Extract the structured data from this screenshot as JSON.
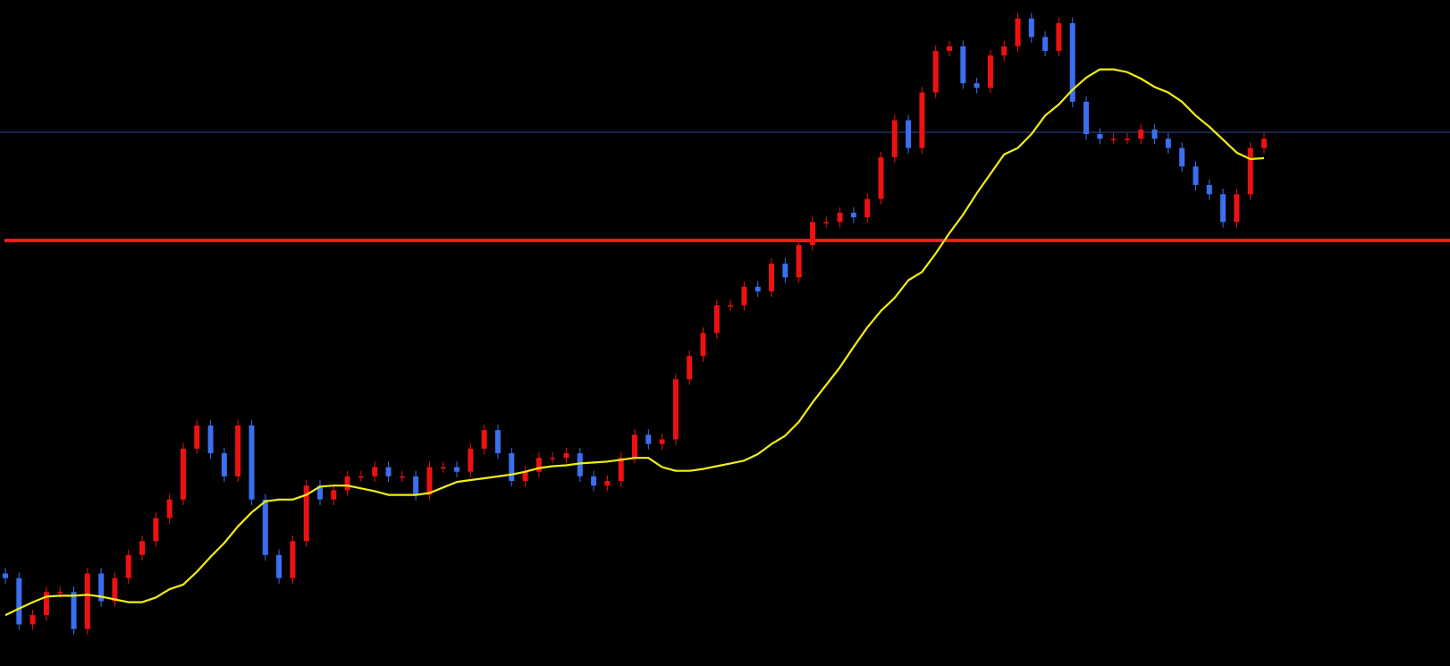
{
  "chart_data": {
    "type": "candlestick",
    "ylim": [
      0,
      720
    ],
    "up_color": "#ee1111",
    "down_color": "#3a6ff0",
    "background": "#000000",
    "open": [
      100,
      95,
      45,
      55,
      80,
      80,
      40,
      100,
      70,
      95,
      120,
      135,
      160,
      180,
      235,
      260,
      230,
      205,
      260,
      180,
      120,
      95,
      135,
      195,
      180,
      190,
      205,
      205,
      215,
      205,
      205,
      185,
      215,
      215,
      210,
      235,
      255,
      230,
      200,
      210,
      225,
      225,
      230,
      205,
      195,
      200,
      225,
      250,
      240,
      245,
      310,
      335,
      360,
      390,
      390,
      410,
      405,
      435,
      420,
      455,
      480,
      480,
      490,
      485,
      505,
      550,
      590,
      560,
      620,
      665,
      670,
      630,
      625,
      660,
      670,
      700,
      680,
      665,
      695,
      610,
      575,
      570,
      570,
      570,
      580,
      570,
      560,
      540,
      520,
      510,
      480,
      510,
      560
    ],
    "high": [
      106,
      101,
      61,
      86,
      86,
      86,
      106,
      106,
      101,
      126,
      141,
      166,
      186,
      241,
      266,
      266,
      236,
      266,
      266,
      186,
      126,
      141,
      201,
      201,
      196,
      211,
      211,
      221,
      221,
      211,
      211,
      221,
      221,
      221,
      241,
      261,
      261,
      236,
      216,
      231,
      231,
      236,
      236,
      211,
      206,
      231,
      256,
      256,
      251,
      316,
      341,
      366,
      396,
      396,
      416,
      416,
      441,
      441,
      461,
      486,
      486,
      496,
      496,
      511,
      556,
      596,
      596,
      626,
      671,
      676,
      676,
      636,
      666,
      676,
      706,
      706,
      686,
      701,
      701,
      616,
      581,
      576,
      576,
      586,
      586,
      576,
      566,
      546,
      526,
      516,
      516,
      566,
      576
    ],
    "low": [
      89,
      39,
      39,
      49,
      74,
      34,
      34,
      64,
      64,
      89,
      114,
      129,
      154,
      174,
      229,
      224,
      199,
      199,
      174,
      114,
      89,
      89,
      129,
      174,
      174,
      184,
      199,
      199,
      199,
      199,
      179,
      179,
      209,
      204,
      204,
      229,
      224,
      194,
      194,
      204,
      219,
      219,
      199,
      189,
      189,
      194,
      219,
      234,
      234,
      239,
      304,
      329,
      354,
      384,
      384,
      399,
      399,
      414,
      414,
      449,
      474,
      474,
      479,
      479,
      499,
      544,
      554,
      554,
      614,
      659,
      624,
      619,
      619,
      654,
      664,
      674,
      659,
      659,
      604,
      569,
      564,
      564,
      564,
      564,
      564,
      554,
      534,
      514,
      504,
      474,
      474,
      504,
      554
    ],
    "close": [
      95,
      45,
      55,
      80,
      80,
      40,
      100,
      70,
      95,
      120,
      135,
      160,
      180,
      235,
      260,
      230,
      205,
      260,
      180,
      120,
      95,
      135,
      195,
      180,
      190,
      205,
      205,
      215,
      205,
      205,
      185,
      215,
      215,
      210,
      235,
      255,
      230,
      200,
      210,
      225,
      225,
      230,
      205,
      195,
      200,
      225,
      250,
      240,
      245,
      310,
      335,
      360,
      390,
      390,
      410,
      405,
      435,
      420,
      455,
      480,
      480,
      490,
      485,
      505,
      550,
      590,
      560,
      620,
      665,
      670,
      630,
      625,
      660,
      670,
      700,
      680,
      665,
      695,
      610,
      575,
      570,
      570,
      570,
      580,
      570,
      560,
      540,
      520,
      510,
      480,
      510,
      560,
      570
    ],
    "ma": {
      "color": "#f2ee10",
      "values": [
        55,
        62,
        69,
        75,
        76,
        76,
        77,
        75,
        72,
        69,
        69,
        74,
        83,
        88,
        102,
        118,
        133,
        151,
        166,
        178,
        180,
        180,
        185,
        194,
        195,
        195,
        192,
        189,
        185,
        185,
        185,
        187,
        193,
        199,
        201,
        203,
        205,
        207,
        210,
        214,
        216,
        217,
        219,
        220,
        221,
        223,
        225,
        225,
        215,
        211,
        211,
        213,
        216,
        219,
        222,
        229,
        240,
        249,
        264,
        285,
        304,
        323,
        345,
        366,
        384,
        398,
        417,
        426,
        446,
        468,
        488,
        511,
        532,
        553,
        560,
        575,
        595,
        607,
        623,
        636,
        645,
        645,
        642,
        635,
        626,
        620,
        610,
        595,
        583,
        569,
        555,
        548,
        549
      ]
    },
    "levels": [
      {
        "value": 460,
        "color": "#ff1a1a"
      },
      {
        "value": 577,
        "color": "#34489e"
      }
    ]
  }
}
